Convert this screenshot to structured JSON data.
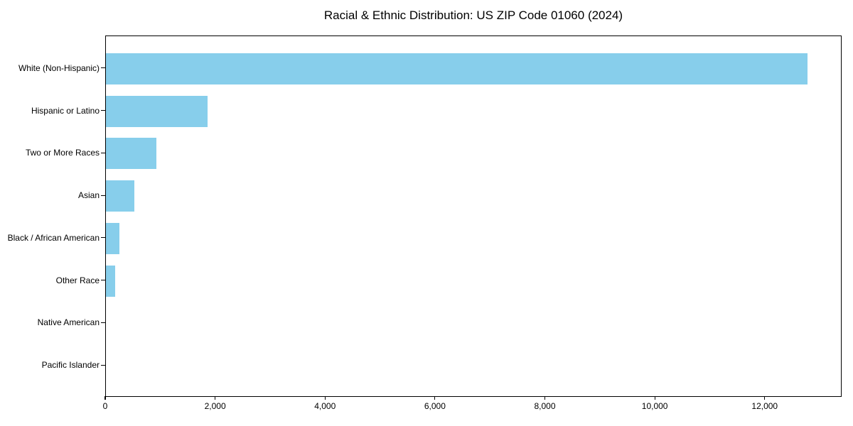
{
  "chart_data": {
    "type": "bar",
    "orientation": "horizontal",
    "title": "Racial & Ethnic Distribution: US ZIP Code 01060 (2024)",
    "categories": [
      "White (Non-Hispanic)",
      "Hispanic or Latino",
      "Two or More Races",
      "Asian",
      "Black / African American",
      "Other Race",
      "Native American",
      "Pacific Islander"
    ],
    "values": [
      12760,
      1845,
      915,
      520,
      240,
      170,
      0,
      0
    ],
    "xlabel": "",
    "ylabel": "",
    "xlim": [
      0,
      13400
    ],
    "xticks": [
      {
        "value": 0,
        "label": "0"
      },
      {
        "value": 2000,
        "label": "2,000"
      },
      {
        "value": 4000,
        "label": "4,000"
      },
      {
        "value": 6000,
        "label": "6,000"
      },
      {
        "value": 8000,
        "label": "8,000"
      },
      {
        "value": 10000,
        "label": "10,000"
      },
      {
        "value": 12000,
        "label": "12,000"
      }
    ],
    "grid": false,
    "legend": null,
    "colors": {
      "bar": "#87CEEB",
      "axis": "#000000",
      "text": "#000000",
      "background": "#FFFFFF"
    }
  }
}
